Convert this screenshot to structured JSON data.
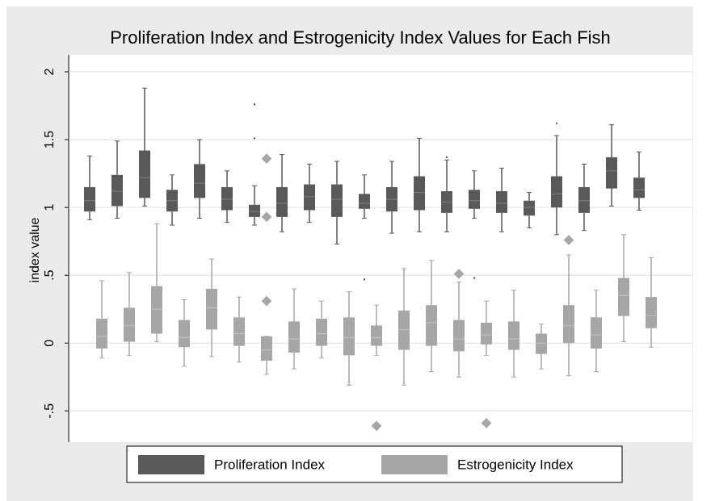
{
  "chart_data": {
    "type": "box",
    "title": "Proliferation Index and Estrogenicity Index Values for Each Fish",
    "y_label": "index value",
    "categories": [
      null,
      null,
      null,
      null,
      null,
      null,
      null,
      null,
      null,
      null,
      null,
      null,
      null,
      null,
      null,
      null,
      null,
      null,
      null,
      null,
      null
    ],
    "ylim": [
      -0.73,
      2.125
    ],
    "yticks": [
      {
        "value": -0.5,
        "label": "-.5"
      },
      0,
      {
        "value": 0.5,
        "label": ".5"
      },
      1,
      1.5,
      2
    ],
    "grid": true,
    "legend": "bottom",
    "series": [
      {
        "name": "Proliferation Index",
        "color": "#595959",
        "whisker_high": [
          1.38,
          1.49,
          1.88,
          1.24,
          1.5,
          1.27,
          1.16,
          1.39,
          1.32,
          1.34,
          1.24,
          1.34,
          1.51,
          1.35,
          1.27,
          1.29,
          1.11,
          1.53,
          1.32,
          1.61,
          1.41
        ],
        "q3": [
          1.15,
          1.24,
          1.42,
          1.13,
          1.32,
          1.15,
          1.02,
          1.15,
          1.17,
          1.17,
          1.1,
          1.15,
          1.23,
          1.12,
          1.13,
          1.12,
          1.05,
          1.23,
          1.15,
          1.37,
          1.22
        ],
        "median": [
          1.05,
          1.12,
          1.22,
          1.05,
          1.18,
          1.06,
          0.97,
          1.03,
          1.08,
          1.06,
          1.03,
          1.06,
          1.11,
          1.04,
          1.05,
          1.03,
          1.0,
          1.1,
          1.05,
          1.27,
          1.13
        ],
        "q1": [
          0.97,
          1.01,
          1.07,
          0.97,
          1.07,
          0.98,
          0.93,
          0.93,
          0.98,
          0.93,
          0.99,
          0.97,
          0.98,
          0.96,
          0.99,
          0.96,
          0.94,
          1.0,
          0.96,
          1.14,
          1.07
        ],
        "whisker_low": [
          0.91,
          0.92,
          1.01,
          0.87,
          0.92,
          0.89,
          0.87,
          0.82,
          0.89,
          0.73,
          0.92,
          0.81,
          0.82,
          0.82,
          0.92,
          0.82,
          0.85,
          0.8,
          0.83,
          1.01,
          0.98
        ],
        "outliers": [
          [],
          [],
          [],
          [],
          [],
          [],
          [
            1.76,
            1.51
          ],
          [],
          [],
          [],
          [
            0.47
          ],
          [],
          [],
          [
            1.37
          ],
          [
            0.48
          ],
          [],
          [],
          [
            1.62
          ],
          [],
          [],
          []
        ]
      },
      {
        "name": "Estrogenicity Index",
        "color": "#a6a6a6",
        "whisker_high": [
          0.46,
          0.52,
          0.88,
          0.32,
          0.62,
          0.34,
          0.05,
          0.4,
          0.31,
          0.38,
          0.28,
          0.55,
          0.61,
          0.45,
          0.31,
          0.39,
          0.14,
          0.65,
          0.39,
          0.8,
          0.63
        ],
        "q3": [
          0.18,
          0.26,
          0.42,
          0.17,
          0.4,
          0.19,
          0.05,
          0.16,
          0.18,
          0.19,
          0.13,
          0.24,
          0.28,
          0.17,
          0.15,
          0.16,
          0.07,
          0.28,
          0.19,
          0.48,
          0.34
        ],
        "median": [
          0.05,
          0.13,
          0.25,
          0.04,
          0.26,
          0.07,
          -0.05,
          0.03,
          0.07,
          0.04,
          0.04,
          0.1,
          0.15,
          0.03,
          0.06,
          0.03,
          0.0,
          0.13,
          0.06,
          0.35,
          0.2
        ],
        "q1": [
          -0.04,
          0.01,
          0.07,
          -0.03,
          0.1,
          -0.02,
          -0.13,
          -0.07,
          -0.02,
          -0.09,
          -0.02,
          -0.05,
          -0.02,
          -0.06,
          -0.01,
          -0.05,
          -0.08,
          0.0,
          -0.04,
          0.2,
          0.11
        ],
        "whisker_low": [
          -0.11,
          -0.09,
          0.01,
          -0.17,
          -0.1,
          -0.14,
          -0.23,
          -0.19,
          -0.11,
          -0.31,
          -0.09,
          -0.31,
          -0.21,
          -0.25,
          -0.09,
          -0.25,
          -0.19,
          -0.24,
          -0.21,
          0.01,
          -0.03
        ],
        "outliers": [
          [],
          [],
          [],
          [],
          [],
          [],
          [
            1.36,
            0.93,
            0.31
          ],
          [],
          [],
          [],
          [
            -0.61
          ],
          [],
          [],
          [
            0.51
          ],
          [
            -0.59
          ],
          [],
          [],
          [
            0.76
          ],
          [],
          [],
          []
        ]
      }
    ]
  }
}
